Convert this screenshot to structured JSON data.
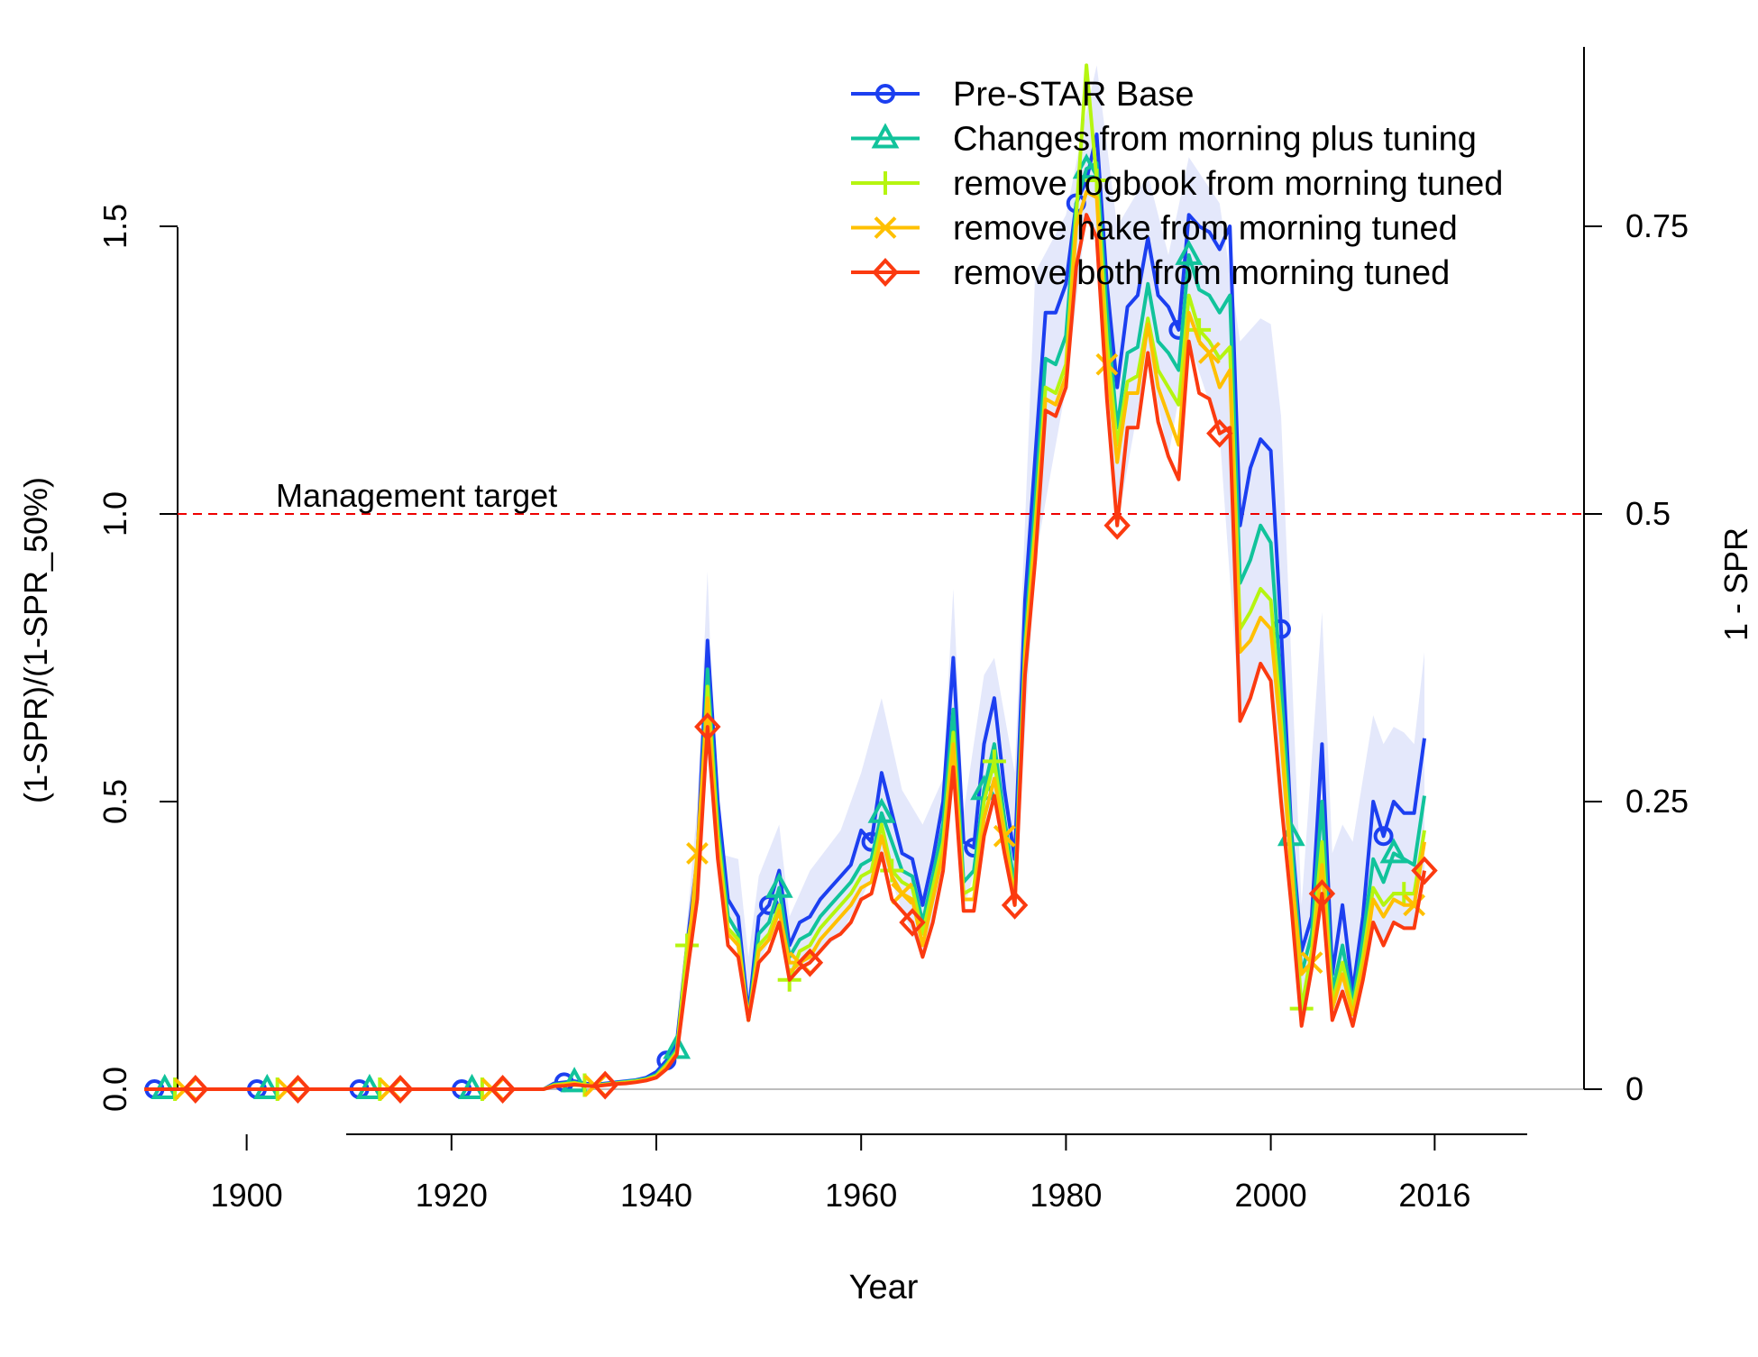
{
  "chart_data": {
    "type": "line",
    "title": "",
    "xlabel": "Year",
    "ylabel": "(1-SPR)/(1-SPR_50%)",
    "ylabel_right": "1 - SPR",
    "xlim": [
      1890,
      2016
    ],
    "ylim": [
      0,
      1.8
    ],
    "x_ticks": [
      1900,
      1920,
      1940,
      1960,
      1980,
      2000,
      2016
    ],
    "y_ticks": [
      0.0,
      0.5,
      1.0,
      1.5
    ],
    "y_tick_labels": [
      "0.0",
      "0.5",
      "1.0",
      "1.5"
    ],
    "y_right_ticks": [
      0,
      0.25,
      0.5,
      0.75
    ],
    "y_right_tick_labels": [
      "0",
      "0.25",
      "0.5",
      "0.75"
    ],
    "reference_line": {
      "y": 1.0,
      "label": "Management target",
      "color": "#ee0000"
    },
    "legend": {
      "position": "top-right",
      "frame": false
    },
    "grid": false,
    "uncertainty_band": {
      "color": "#e4e8fb",
      "x": [
        1940,
        1942,
        1944,
        1945,
        1946,
        1948,
        1949,
        1950,
        1952,
        1953,
        1955,
        1958,
        1960,
        1962,
        1964,
        1966,
        1968,
        1969,
        1970,
        1972,
        1973,
        1975,
        1977,
        1980,
        1982,
        1983,
        1985,
        1988,
        1990,
        1992,
        1995,
        1997,
        1999,
        2000,
        2001,
        2003,
        2005,
        2006,
        2007,
        2008,
        2010,
        2011,
        2012,
        2013,
        2014,
        2015
      ],
      "upper": [
        0.03,
        0.09,
        0.49,
        0.9,
        0.41,
        0.4,
        0.23,
        0.37,
        0.46,
        0.3,
        0.38,
        0.45,
        0.55,
        0.68,
        0.52,
        0.46,
        0.54,
        0.87,
        0.48,
        0.72,
        0.75,
        0.55,
        1.42,
        1.52,
        1.7,
        1.78,
        1.5,
        1.59,
        1.45,
        1.62,
        1.54,
        1.3,
        1.34,
        1.33,
        1.17,
        0.32,
        0.83,
        0.41,
        0.46,
        0.43,
        0.65,
        0.6,
        0.63,
        0.62,
        0.6,
        0.76
      ]
    },
    "x": [
      1890,
      1891,
      1892,
      1893,
      1894,
      1895,
      1896,
      1897,
      1898,
      1899,
      1900,
      1901,
      1902,
      1903,
      1904,
      1905,
      1906,
      1907,
      1908,
      1909,
      1910,
      1911,
      1912,
      1913,
      1914,
      1915,
      1916,
      1917,
      1918,
      1919,
      1920,
      1921,
      1922,
      1923,
      1924,
      1925,
      1926,
      1927,
      1928,
      1929,
      1930,
      1931,
      1932,
      1933,
      1934,
      1935,
      1936,
      1937,
      1938,
      1939,
      1940,
      1941,
      1942,
      1943,
      1944,
      1945,
      1946,
      1947,
      1948,
      1949,
      1950,
      1951,
      1952,
      1953,
      1954,
      1955,
      1956,
      1957,
      1958,
      1959,
      1960,
      1961,
      1962,
      1963,
      1964,
      1965,
      1966,
      1967,
      1968,
      1969,
      1970,
      1971,
      1972,
      1973,
      1974,
      1975,
      1976,
      1977,
      1978,
      1979,
      1980,
      1981,
      1982,
      1983,
      1984,
      1985,
      1986,
      1987,
      1988,
      1989,
      1990,
      1991,
      1992,
      1993,
      1994,
      1995,
      1996,
      1997,
      1998,
      1999,
      2000,
      2001,
      2002,
      2003,
      2004,
      2005,
      2006,
      2007,
      2008,
      2009,
      2010,
      2011,
      2012,
      2013,
      2014,
      2015
    ],
    "series": [
      {
        "name": "Pre-STAR Base",
        "color": "#1c3ff0",
        "marker": "circle",
        "values": [
          0,
          0,
          0,
          0,
          0,
          0,
          0,
          0,
          0,
          0,
          0,
          0,
          0,
          0,
          0,
          0,
          0,
          0,
          0,
          0,
          0,
          0,
          0,
          0,
          0,
          0,
          0,
          0,
          0,
          0,
          0,
          0,
          0,
          0,
          0,
          0,
          0,
          0,
          0,
          0,
          0.01,
          0.012,
          0.014,
          0.01,
          0.008,
          0.01,
          0.012,
          0.014,
          0.016,
          0.02,
          0.03,
          0.05,
          0.08,
          0.25,
          0.4,
          0.78,
          0.5,
          0.33,
          0.3,
          0.13,
          0.3,
          0.32,
          0.38,
          0.25,
          0.29,
          0.3,
          0.33,
          0.35,
          0.37,
          0.39,
          0.45,
          0.43,
          0.55,
          0.48,
          0.41,
          0.4,
          0.32,
          0.4,
          0.5,
          0.75,
          0.43,
          0.42,
          0.6,
          0.68,
          0.52,
          0.4,
          0.85,
          1.1,
          1.35,
          1.35,
          1.4,
          1.54,
          1.58,
          1.66,
          1.4,
          1.22,
          1.36,
          1.38,
          1.48,
          1.38,
          1.36,
          1.32,
          1.52,
          1.5,
          1.49,
          1.46,
          1.5,
          0.98,
          1.08,
          1.13,
          1.11,
          0.8,
          0.45,
          0.24,
          0.3,
          0.6,
          0.2,
          0.32,
          0.17,
          0.3,
          0.5,
          0.44,
          0.5,
          0.48,
          0.48,
          0.61
        ]
      },
      {
        "name": "Changes from morning plus tuning",
        "color": "#11c39b",
        "marker": "triangle",
        "values": [
          0,
          0,
          0,
          0,
          0,
          0,
          0,
          0,
          0,
          0,
          0,
          0,
          0,
          0,
          0,
          0,
          0,
          0,
          0,
          0,
          0,
          0,
          0,
          0,
          0,
          0,
          0,
          0,
          0,
          0,
          0,
          0,
          0,
          0,
          0,
          0,
          0,
          0,
          0,
          0,
          0.008,
          0.01,
          0.012,
          0.008,
          0.007,
          0.009,
          0.011,
          0.013,
          0.015,
          0.018,
          0.025,
          0.045,
          0.07,
          0.22,
          0.37,
          0.73,
          0.46,
          0.3,
          0.27,
          0.12,
          0.27,
          0.29,
          0.35,
          0.23,
          0.26,
          0.27,
          0.3,
          0.32,
          0.34,
          0.36,
          0.39,
          0.4,
          0.48,
          0.43,
          0.38,
          0.37,
          0.29,
          0.37,
          0.46,
          0.66,
          0.36,
          0.38,
          0.52,
          0.6,
          0.47,
          0.35,
          0.78,
          1.02,
          1.27,
          1.26,
          1.31,
          1.54,
          1.6,
          1.61,
          1.35,
          1.15,
          1.28,
          1.29,
          1.4,
          1.3,
          1.28,
          1.25,
          1.45,
          1.39,
          1.38,
          1.35,
          1.38,
          0.88,
          0.92,
          0.98,
          0.95,
          0.7,
          0.44,
          0.2,
          0.27,
          0.5,
          0.17,
          0.25,
          0.15,
          0.26,
          0.4,
          0.36,
          0.41,
          0.4,
          0.39,
          0.51
        ]
      },
      {
        "name": "remove logbook from morning tuned",
        "color": "#b5f510",
        "marker": "plus",
        "values": [
          0,
          0,
          0,
          0,
          0,
          0,
          0,
          0,
          0,
          0,
          0,
          0,
          0,
          0,
          0,
          0,
          0,
          0,
          0,
          0,
          0,
          0,
          0,
          0,
          0,
          0,
          0,
          0,
          0,
          0,
          0,
          0,
          0,
          0,
          0,
          0,
          0,
          0,
          0,
          0,
          0.007,
          0.009,
          0.011,
          0.007,
          0.006,
          0.008,
          0.01,
          0.012,
          0.014,
          0.017,
          0.023,
          0.042,
          0.065,
          0.25,
          0.35,
          0.7,
          0.44,
          0.28,
          0.26,
          0.12,
          0.25,
          0.27,
          0.32,
          0.19,
          0.24,
          0.25,
          0.28,
          0.3,
          0.32,
          0.34,
          0.37,
          0.38,
          0.46,
          0.38,
          0.36,
          0.35,
          0.27,
          0.35,
          0.43,
          0.62,
          0.34,
          0.35,
          0.5,
          0.57,
          0.45,
          0.33,
          0.76,
          0.98,
          1.22,
          1.21,
          1.26,
          1.52,
          1.78,
          1.58,
          1.3,
          1.12,
          1.23,
          1.24,
          1.34,
          1.25,
          1.22,
          1.19,
          1.38,
          1.32,
          1.3,
          1.27,
          1.29,
          0.8,
          0.83,
          0.87,
          0.85,
          0.64,
          0.4,
          0.14,
          0.24,
          0.43,
          0.15,
          0.22,
          0.14,
          0.23,
          0.35,
          0.32,
          0.34,
          0.34,
          0.34,
          0.45
        ]
      },
      {
        "name": "remove hake from morning tuned",
        "color": "#ffc000",
        "marker": "x",
        "values": [
          0,
          0,
          0,
          0,
          0,
          0,
          0,
          0,
          0,
          0,
          0,
          0,
          0,
          0,
          0,
          0,
          0,
          0,
          0,
          0,
          0,
          0,
          0,
          0,
          0,
          0,
          0,
          0,
          0,
          0,
          0,
          0,
          0,
          0,
          0,
          0,
          0,
          0,
          0,
          0,
          0.006,
          0.008,
          0.01,
          0.007,
          0.006,
          0.008,
          0.01,
          0.011,
          0.013,
          0.016,
          0.022,
          0.04,
          0.062,
          0.21,
          0.41,
          0.68,
          0.42,
          0.27,
          0.25,
          0.12,
          0.24,
          0.26,
          0.31,
          0.22,
          0.22,
          0.23,
          0.26,
          0.28,
          0.3,
          0.32,
          0.35,
          0.36,
          0.44,
          0.37,
          0.34,
          0.33,
          0.25,
          0.33,
          0.41,
          0.6,
          0.33,
          0.33,
          0.47,
          0.54,
          0.44,
          0.32,
          0.75,
          0.96,
          1.2,
          1.19,
          1.24,
          1.5,
          1.56,
          1.55,
          1.26,
          1.09,
          1.21,
          1.21,
          1.33,
          1.22,
          1.17,
          1.12,
          1.35,
          1.3,
          1.28,
          1.22,
          1.25,
          0.76,
          0.78,
          0.82,
          0.8,
          0.61,
          0.38,
          0.2,
          0.22,
          0.39,
          0.14,
          0.2,
          0.13,
          0.21,
          0.33,
          0.3,
          0.33,
          0.32,
          0.32,
          0.43
        ]
      },
      {
        "name": "remove both from morning tuned",
        "color": "#fb3a10",
        "marker": "diamond",
        "values": [
          0,
          0,
          0,
          0,
          0,
          0,
          0,
          0,
          0,
          0,
          0,
          0,
          0,
          0,
          0,
          0,
          0,
          0,
          0,
          0,
          0,
          0,
          0,
          0,
          0,
          0,
          0,
          0,
          0,
          0,
          0,
          0,
          0,
          0,
          0,
          0,
          0,
          0,
          0,
          0,
          0.005,
          0.006,
          0.008,
          0.006,
          0.005,
          0.007,
          0.009,
          0.01,
          0.012,
          0.015,
          0.02,
          0.035,
          0.06,
          0.2,
          0.33,
          0.63,
          0.4,
          0.25,
          0.23,
          0.12,
          0.22,
          0.24,
          0.29,
          0.19,
          0.21,
          0.22,
          0.24,
          0.26,
          0.27,
          0.29,
          0.33,
          0.34,
          0.41,
          0.33,
          0.31,
          0.29,
          0.23,
          0.29,
          0.38,
          0.56,
          0.31,
          0.31,
          0.44,
          0.51,
          0.41,
          0.32,
          0.72,
          0.92,
          1.18,
          1.17,
          1.22,
          1.43,
          1.52,
          1.48,
          1.2,
          0.98,
          1.15,
          1.15,
          1.28,
          1.16,
          1.1,
          1.06,
          1.3,
          1.21,
          1.2,
          1.14,
          1.15,
          0.64,
          0.68,
          0.74,
          0.71,
          0.5,
          0.32,
          0.11,
          0.21,
          0.34,
          0.12,
          0.17,
          0.11,
          0.19,
          0.29,
          0.25,
          0.29,
          0.28,
          0.28,
          0.38
        ]
      }
    ]
  }
}
